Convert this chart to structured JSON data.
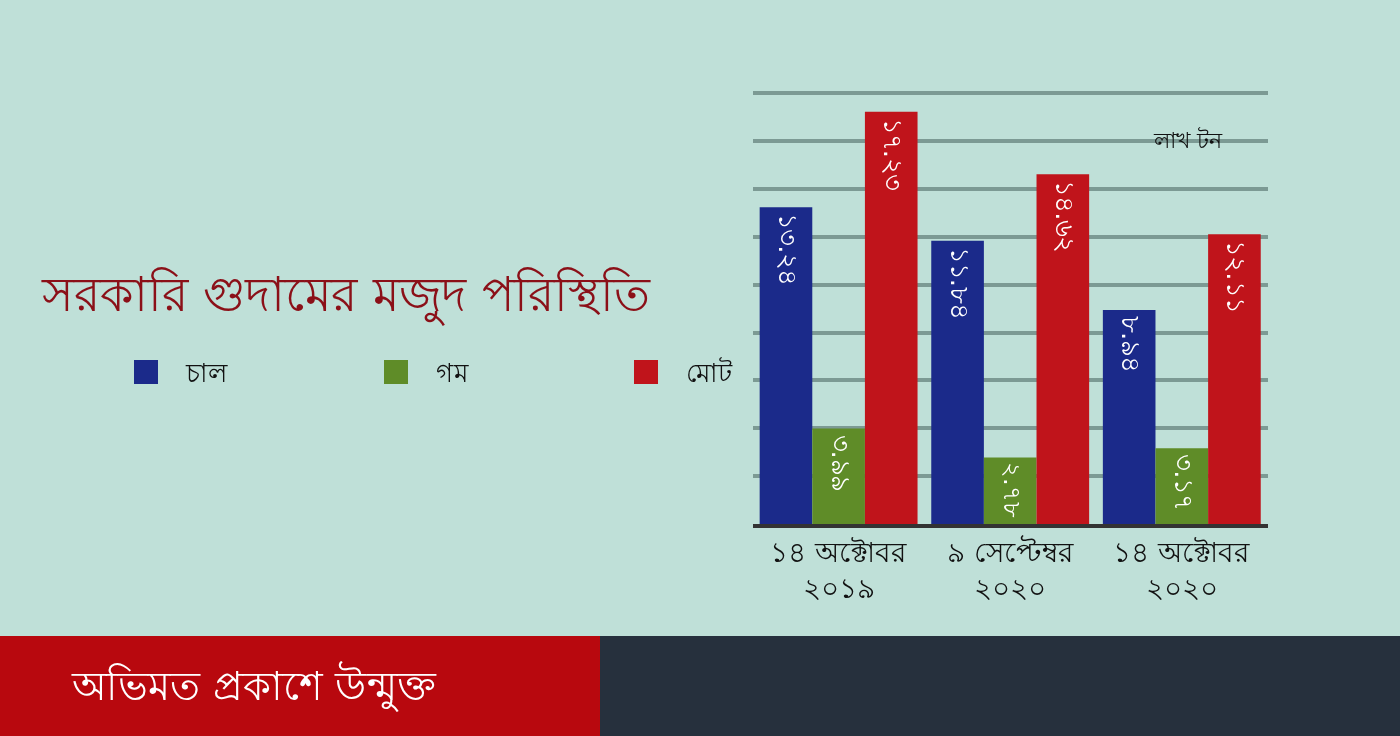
{
  "chart_data": {
    "type": "bar",
    "title": "সরকারি গুদামের মজুদ পরিস্থিতি",
    "categories": [
      "১৪ অক্টোবর\n২০১৯",
      "৯ সেপ্টেম্বর\n২০২০",
      "১৪ অক্টোবর\n২০২০"
    ],
    "series": [
      {
        "name": "চাল",
        "color": "#1b2a8a",
        "values": [
          13.24,
          11.84,
          8.94
        ],
        "value_labels": [
          "১৩.২৪",
          "১১.৮৪",
          "৮.৯৪"
        ]
      },
      {
        "name": "গম",
        "color": "#5f8c28",
        "values": [
          3.99,
          2.78,
          3.17
        ],
        "value_labels": [
          "৩.৯৯",
          "২.৭৮",
          "৩.১৭"
        ]
      },
      {
        "name": "মোট",
        "color": "#c0141b",
        "values": [
          17.23,
          14.62,
          12.11
        ],
        "value_labels": [
          "১৭.২৩",
          "১৪.৬২",
          "১২.১১"
        ]
      }
    ],
    "grid": "y",
    "legend": "left",
    "tick_labels": "x",
    "annotations": [
      "লাখ টন",
      "অভিমত প্রকাশে উন্মুক্ত"
    ]
  }
}
